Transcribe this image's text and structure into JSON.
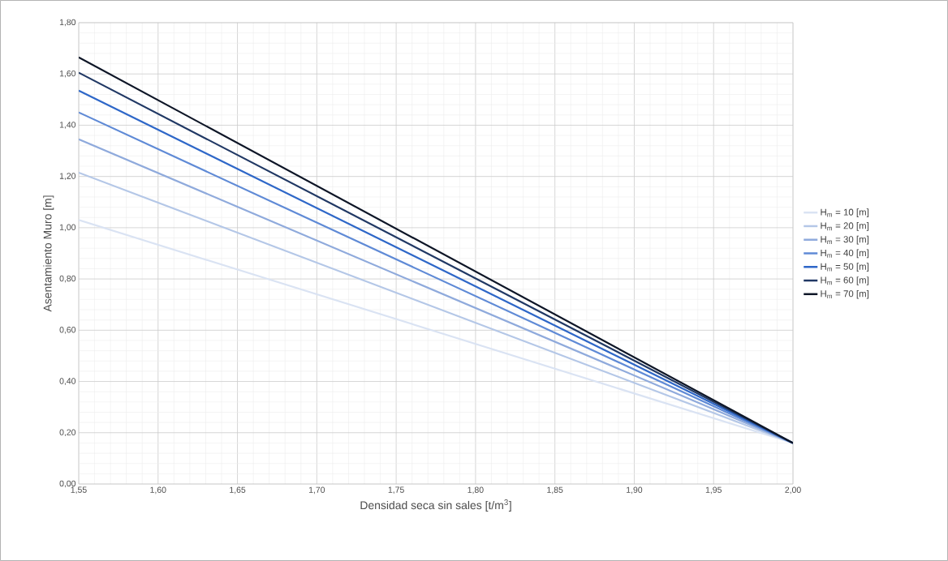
{
  "chart_data": {
    "type": "line",
    "xlabel": "Densidad seca sin sales [t/m$^{3}$]",
    "ylabel": "Asentamiento Muro [m]",
    "x": [
      1.55,
      2.0
    ],
    "series": [
      {
        "name": "H$_{m}$ = 10 [m]",
        "color": "#dae3f3",
        "values": [
          1.03,
          0.16
        ]
      },
      {
        "name": "H$_{m}$ = 20 [m]",
        "color": "#b4c7e7",
        "values": [
          1.215,
          0.16
        ]
      },
      {
        "name": "H$_{m}$ = 30 [m]",
        "color": "#8faadc",
        "values": [
          1.345,
          0.16
        ]
      },
      {
        "name": "H$_{m}$ = 40 [m]",
        "color": "#5f8ad6",
        "values": [
          1.45,
          0.16
        ]
      },
      {
        "name": "H$_{m}$ = 50 [m]",
        "color": "#2e67c8",
        "values": [
          1.535,
          0.16
        ]
      },
      {
        "name": "H$_{m}$ = 60 [m]",
        "color": "#203864",
        "values": [
          1.605,
          0.16
        ]
      },
      {
        "name": "H$_{m}$ = 70 [m]",
        "color": "#0d1526",
        "values": [
          1.665,
          0.16
        ]
      }
    ],
    "xlim": [
      1.55,
      2.0
    ],
    "ylim": [
      0,
      1.8
    ],
    "xticks": [
      {
        "value": 1.55,
        "label": "1,55"
      },
      {
        "value": 1.6,
        "label": "1,60"
      },
      {
        "value": 1.65,
        "label": "1,65"
      },
      {
        "value": 1.7,
        "label": "1,70"
      },
      {
        "value": 1.75,
        "label": "1,75"
      },
      {
        "value": 1.8,
        "label": "1,80"
      },
      {
        "value": 1.85,
        "label": "1,85"
      },
      {
        "value": 1.9,
        "label": "1,90"
      },
      {
        "value": 1.95,
        "label": "1,95"
      },
      {
        "value": 2.0,
        "label": "2,00"
      }
    ],
    "yticks": [
      {
        "value": 0,
        "label": "0,00"
      },
      {
        "value": 0.2,
        "label": "0,20"
      },
      {
        "value": 0.4,
        "label": "0,40"
      },
      {
        "value": 0.6,
        "label": "0,60"
      },
      {
        "value": 0.8,
        "label": "0,80"
      },
      {
        "value": 1.0,
        "label": "1,00"
      },
      {
        "value": 1.2,
        "label": "1,20"
      },
      {
        "value": 1.4,
        "label": "1,40"
      },
      {
        "value": 1.6,
        "label": "1,60"
      },
      {
        "value": 1.8,
        "label": "1,80"
      }
    ],
    "grid": true,
    "legend": "right",
    "marker": "none",
    "line_style": "solid"
  }
}
